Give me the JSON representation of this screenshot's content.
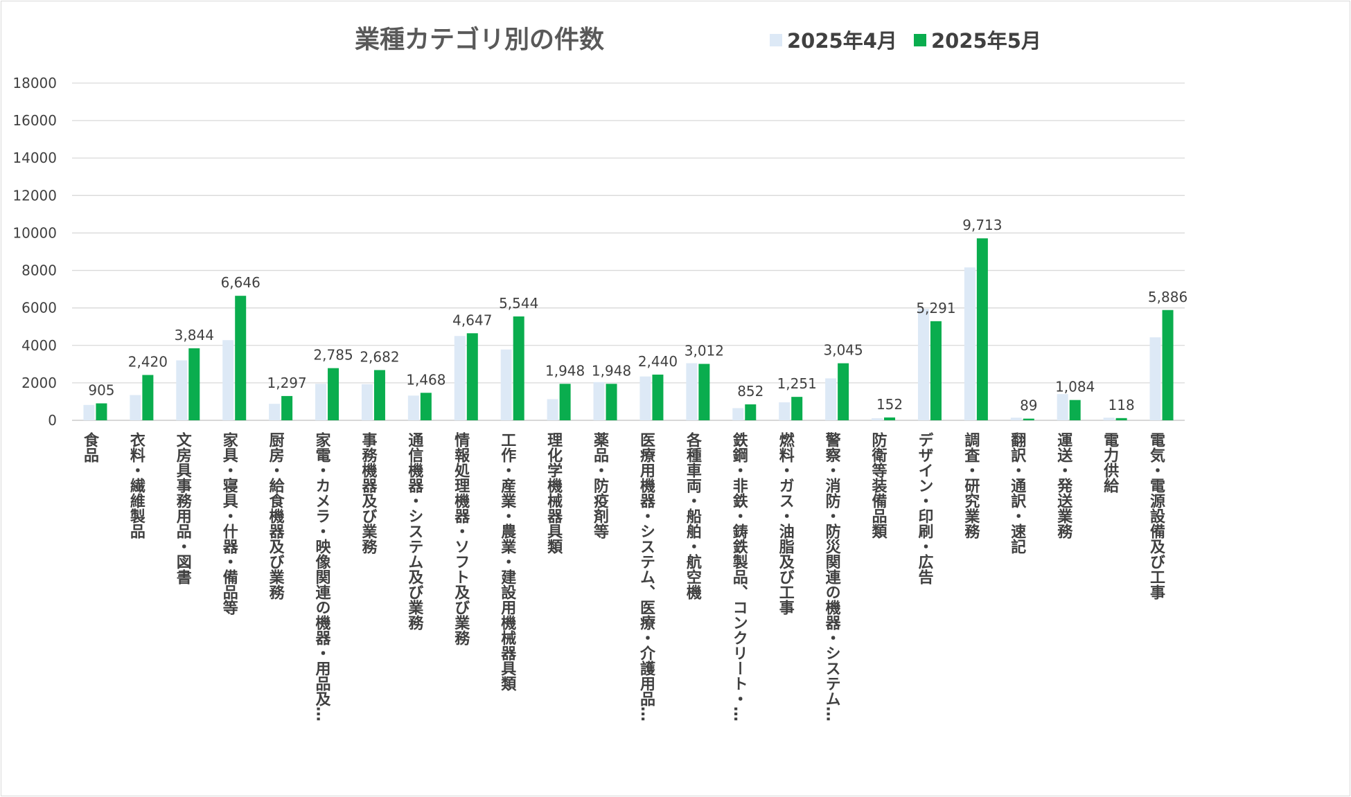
{
  "chart_data": {
    "type": "bar",
    "title": "業種カテゴリ別の件数",
    "xlabel": "",
    "ylabel": "",
    "ylim": [
      0,
      18000
    ],
    "yticks": [
      "0",
      "2000",
      "4000",
      "6000",
      "8000",
      "10000",
      "12000",
      "14000",
      "16000",
      "18000"
    ],
    "grid": true,
    "legend_position": "top",
    "categories": [
      "食品",
      "衣料・繊維製品",
      "文房具事務用品・図書",
      "家具・寝具・什器・備品等",
      "厨房・給食機器及び業務",
      "家電・カメラ・映像関連の機器・用品及…",
      "事務機器及び業務",
      "通信機器・システム及び業務",
      "情報処理機器・ソフト及び業務",
      "工作・産業・農業・建設用機械器具類",
      "理化学機械器具類",
      "薬品・防疫剤等",
      "医療用機器・システム、医療・介護用品…",
      "各種車両・船舶・航空機",
      "鉄鋼・非鉄・鋳鉄製品、コンクリート・…",
      "燃料・ガス・油脂及び工事",
      "警察・消防・防災関連の機器・システム…",
      "防衛等装備品類",
      "デザイン・印刷・広告",
      "調査・研究業務",
      "翻訳・通訳・速記",
      "運送・発送業務",
      "電力供給",
      "電気・電源設備及び工事"
    ],
    "series": [
      {
        "name": "2025年4月",
        "color": "#dde9f6",
        "values": [
          820,
          1350,
          3200,
          4280,
          880,
          1950,
          1930,
          1320,
          4500,
          3780,
          1130,
          2040,
          2340,
          3050,
          650,
          960,
          2240,
          110,
          5950,
          8160,
          140,
          1400,
          140,
          4430
        ],
        "labels": []
      },
      {
        "name": "2025年5月",
        "color": "#0aad4e",
        "values": [
          905,
          2420,
          3844,
          6646,
          1297,
          2785,
          2682,
          1468,
          4647,
          5544,
          1948,
          1948,
          2440,
          3012,
          852,
          1251,
          3045,
          152,
          5291,
          9713,
          89,
          1084,
          118,
          5886
        ],
        "labels": [
          "905",
          "2,420",
          "3,844",
          "6,646",
          "1,297",
          "2,785",
          "2,682",
          "1,468",
          "4,647",
          "5,544",
          "1,948",
          "1,948",
          "2,440",
          "3,012",
          "852",
          "1,251",
          "3,045",
          "152",
          "5,291",
          "9,713",
          "89",
          "1,084",
          "118",
          "5,886"
        ]
      }
    ]
  }
}
